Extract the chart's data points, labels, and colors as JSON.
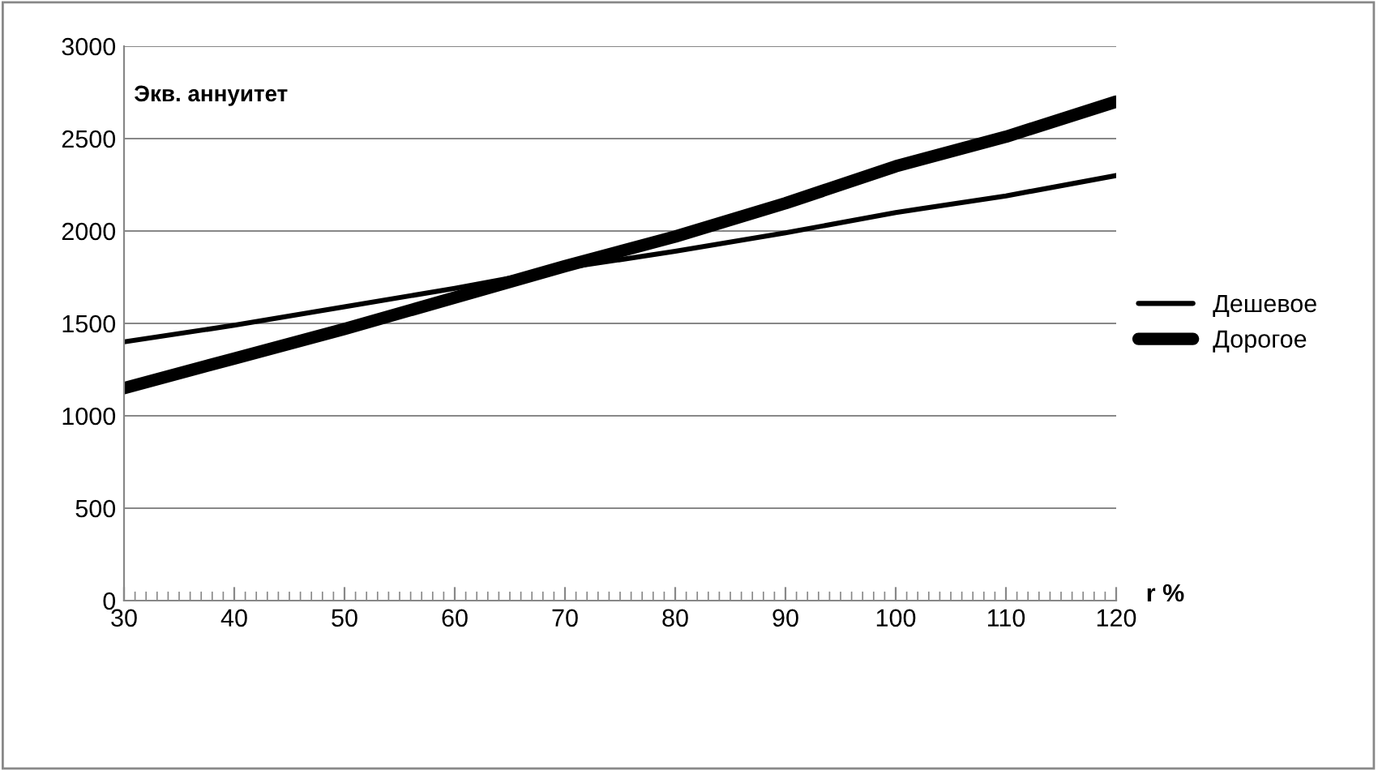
{
  "chart_data": {
    "type": "line",
    "ylabel": "Экв. аннуитет",
    "xlabel": "r %",
    "x": [
      30,
      40,
      50,
      60,
      70,
      80,
      90,
      100,
      110,
      120
    ],
    "series": [
      {
        "name": "Дешевое",
        "color": "#000000",
        "values": [
          1400,
          1490,
          1590,
          1690,
          1800,
          1890,
          1990,
          2100,
          2190,
          2300
        ]
      },
      {
        "name": "Дорогое",
        "color": "#000000",
        "values": [
          1150,
          1310,
          1470,
          1640,
          1810,
          1970,
          2150,
          2350,
          2510,
          2700
        ]
      }
    ],
    "xlim": [
      30,
      120
    ],
    "xticks": [
      30,
      40,
      50,
      60,
      70,
      80,
      90,
      100,
      110,
      120
    ],
    "ylim": [
      0,
      3000
    ],
    "yticks": [
      0,
      500,
      1000,
      1500,
      2000,
      2500,
      3000
    ],
    "grid": "y",
    "legend": "right",
    "marker": "none",
    "line_style": "solid"
  }
}
